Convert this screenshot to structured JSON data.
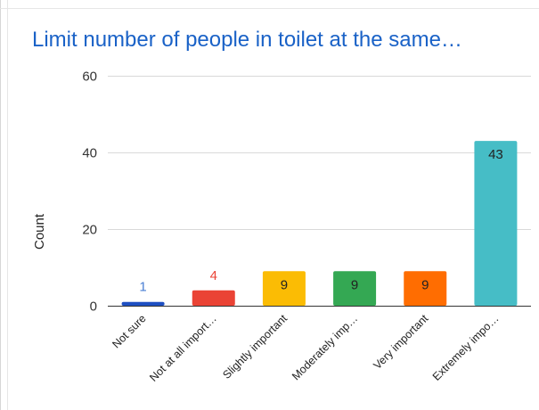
{
  "chart_data": {
    "type": "bar",
    "title": "Limit number of people in toilet at the same…",
    "xlabel": "",
    "ylabel": "Count",
    "ylim": [
      0,
      60
    ],
    "yticks": [
      0,
      20,
      40,
      60
    ],
    "grid": true,
    "categories": [
      "Not sure",
      "Not at all import…",
      "Slightly important",
      "Moderately imp…",
      "Very important",
      "Extremely impo…"
    ],
    "values": [
      1,
      4,
      9,
      9,
      9,
      43
    ],
    "data_labels": [
      "1",
      "4",
      "9",
      "9",
      "9",
      "43"
    ],
    "colors": [
      "#1e4fc2",
      "#ea4335",
      "#fbbc04",
      "#34a853",
      "#ff6d01",
      "#46bdc6"
    ],
    "label_colors": [
      "#4a7fd4",
      "#ea4335",
      "#222222",
      "#222222",
      "#222222",
      "#222222"
    ]
  }
}
